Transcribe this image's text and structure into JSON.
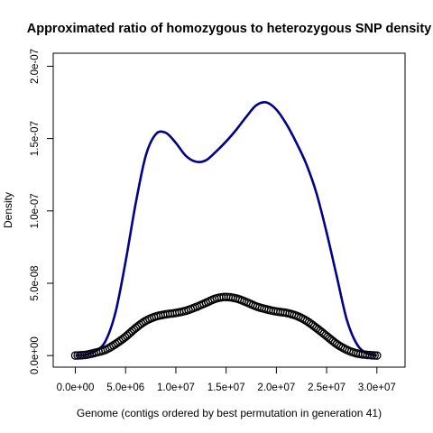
{
  "chart_data": {
    "type": "line",
    "title": "Approximated ratio of homozygous to heterozygous SNP density",
    "xlabel": "Genome (contigs ordered by best permutation in generation 41)",
    "ylabel": "Density",
    "xlim": [
      -2200000,
      32800000
    ],
    "ylim": [
      -8e-09,
      2.09e-07
    ],
    "x_ticks": [
      0,
      5000000,
      10000000,
      15000000,
      20000000,
      25000000,
      30000000
    ],
    "x_tick_labels": [
      "0.0e+00",
      "5.0e+06",
      "1.0e+07",
      "1.5e+07",
      "2.0e+07",
      "2.5e+07",
      "3.0e+07"
    ],
    "y_ticks": [
      0,
      5e-08,
      1e-07,
      1.5e-07,
      2e-07
    ],
    "y_tick_labels": [
      "0.0e+00",
      "5.0e-08",
      "1.0e-07",
      "1.5e-07",
      "2.0e-07"
    ],
    "grid": false,
    "legend": "none",
    "series": [
      {
        "style": "line",
        "color": "#00008b",
        "x": [
          0,
          1000000,
          2000000,
          3000000,
          4000000,
          5000000,
          6000000,
          7000000,
          8000000,
          9000000,
          10000000,
          11000000,
          12000000,
          13000000,
          14000000,
          15000000,
          16000000,
          17000000,
          18000000,
          19000000,
          20000000,
          21000000,
          22000000,
          23000000,
          24000000,
          25000000,
          26000000,
          27000000,
          28000000,
          29000000,
          30000000
        ],
        "values": [
          0,
          5e-10,
          3e-09,
          1e-08,
          3e-08,
          6.5e-08,
          1.05e-07,
          1.38e-07,
          1.53e-07,
          1.54e-07,
          1.47e-07,
          1.38e-07,
          1.34e-07,
          1.35e-07,
          1.41e-07,
          1.48e-07,
          1.56e-07,
          1.65e-07,
          1.73e-07,
          1.75e-07,
          1.7e-07,
          1.6e-07,
          1.47e-07,
          1.32e-07,
          1.12e-07,
          8.5e-08,
          5.5e-08,
          2.5e-08,
          8e-09,
          1.5e-09,
          0
        ]
      },
      {
        "style": "points",
        "color": "#000000",
        "x": [
          0,
          1000000,
          2000000,
          3000000,
          4000000,
          5000000,
          6000000,
          7000000,
          8000000,
          9000000,
          10000000,
          11000000,
          12000000,
          13000000,
          14000000,
          15000000,
          16000000,
          17000000,
          18000000,
          19000000,
          20000000,
          21000000,
          22000000,
          23000000,
          24000000,
          25000000,
          26000000,
          27000000,
          28000000,
          29000000,
          30000000
        ],
        "values": [
          0,
          5e-10,
          2e-09,
          4e-09,
          8e-09,
          1.3e-08,
          1.9e-08,
          2.4e-08,
          2.7e-08,
          2.85e-08,
          2.95e-08,
          3.1e-08,
          3.35e-08,
          3.65e-08,
          3.95e-08,
          4.05e-08,
          3.95e-08,
          3.7e-08,
          3.4e-08,
          3.2e-08,
          3.05e-08,
          2.95e-08,
          2.75e-08,
          2.4e-08,
          1.9e-08,
          1.35e-08,
          8e-09,
          4e-09,
          1.5e-09,
          5e-10,
          0
        ]
      }
    ]
  }
}
